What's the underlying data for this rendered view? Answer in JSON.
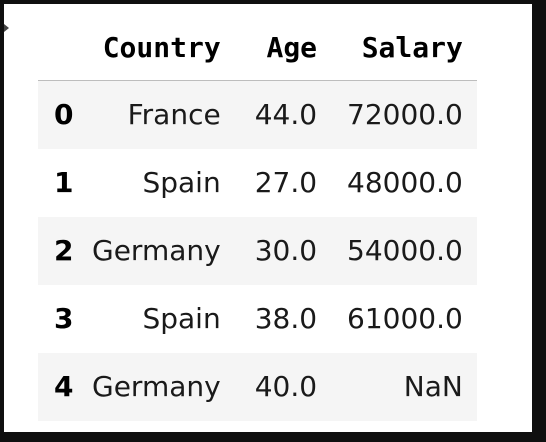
{
  "table": {
    "columns": [
      "Country",
      "Age",
      "Salary"
    ],
    "rows": [
      {
        "index": "0",
        "Country": "France",
        "Age": "44.0",
        "Salary": "72000.0"
      },
      {
        "index": "1",
        "Country": "Spain",
        "Age": "27.0",
        "Salary": "48000.0"
      },
      {
        "index": "2",
        "Country": "Germany",
        "Age": "30.0",
        "Salary": "54000.0"
      },
      {
        "index": "3",
        "Country": "Spain",
        "Age": "38.0",
        "Salary": "61000.0"
      },
      {
        "index": "4",
        "Country": "Germany",
        "Age": "40.0",
        "Salary": "NaN"
      }
    ]
  },
  "colors": {
    "background": "#0f0f0f",
    "frame": "#ffffff",
    "stripe": "#f5f5f5",
    "header_rule": "#bdbdbd"
  }
}
